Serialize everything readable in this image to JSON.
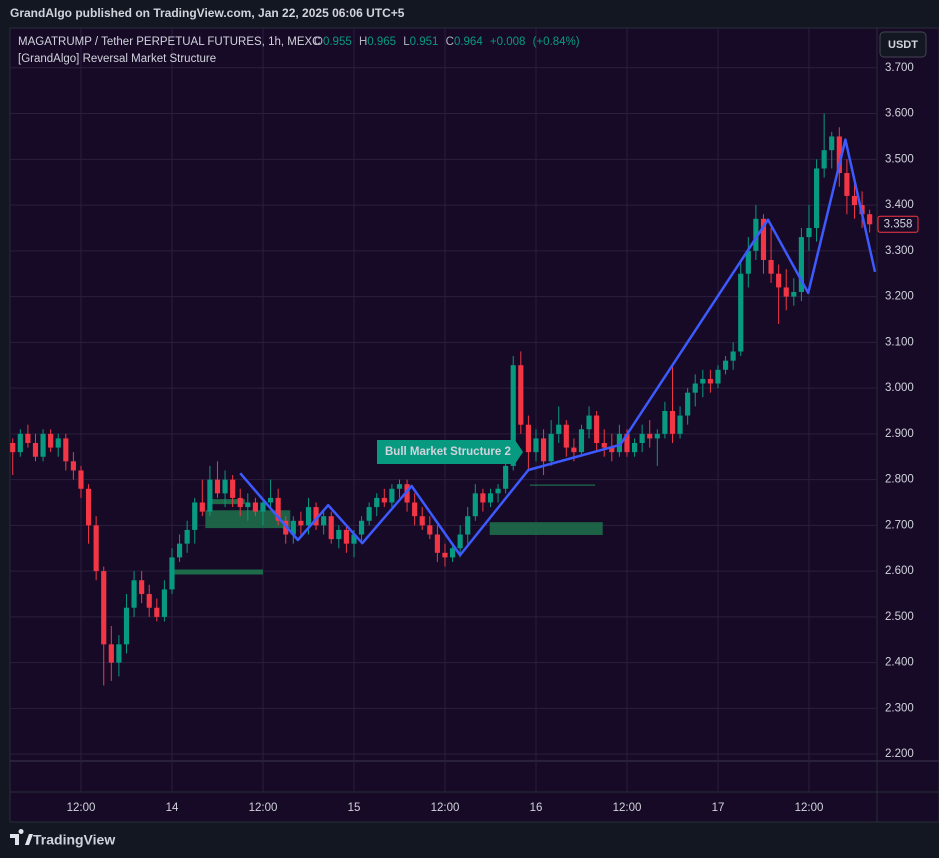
{
  "header": {
    "published": "GrandAlgo published on TradingView.com, Jan 22, 2025 06:06 UTC+5",
    "brand": "TradingView"
  },
  "legend": {
    "symbol": "MAGATRUMP / Tether PERPETUAL FUTURES, 1h, MEXC",
    "o_label": "O",
    "o": "0.955",
    "h_label": "H",
    "h": "0.965",
    "l_label": "L",
    "l": "0.951",
    "c_label": "C",
    "c": "0.964",
    "change": "+0.008",
    "change_pct": "(+0.84%)",
    "indicator": "[GrandAlgo] Reversal Market Structure",
    "currency": "USDT"
  },
  "chart_data": {
    "type": "candlestick",
    "x": [
      3,
      4,
      5,
      6,
      7,
      8,
      9,
      10,
      11,
      12,
      13,
      14,
      15,
      16,
      17,
      18,
      19,
      20,
      21,
      22,
      23,
      24,
      25,
      26,
      27,
      28,
      29,
      30,
      31,
      32,
      33,
      34,
      35,
      36,
      37,
      38,
      39,
      40,
      41,
      42,
      43,
      44,
      45,
      46,
      47,
      48,
      49,
      50,
      51,
      52,
      53,
      54,
      55,
      56,
      57,
      58,
      59,
      60,
      61,
      62,
      63,
      64,
      65,
      66,
      67,
      68,
      69,
      70,
      71,
      72,
      73,
      74,
      75,
      76,
      77,
      78,
      79,
      80,
      81,
      82,
      83,
      84,
      85,
      86,
      87,
      88,
      89,
      90,
      91,
      92,
      93,
      94,
      95,
      96,
      97,
      98,
      99,
      100,
      101,
      102,
      103,
      104,
      105,
      106,
      107,
      108,
      109,
      110,
      111,
      112,
      113,
      114,
      115,
      116
    ],
    "open": [
      2.88,
      2.86,
      2.9,
      2.88,
      2.85,
      2.9,
      2.87,
      2.89,
      2.84,
      2.82,
      2.78,
      2.7,
      2.6,
      2.44,
      2.4,
      2.44,
      2.52,
      2.58,
      2.55,
      2.52,
      2.5,
      2.56,
      2.63,
      2.66,
      2.69,
      2.75,
      2.73,
      2.8,
      2.77,
      2.8,
      2.76,
      2.74,
      2.75,
      2.73,
      2.75,
      2.76,
      2.71,
      2.68,
      2.71,
      2.7,
      2.74,
      2.7,
      2.72,
      2.67,
      2.69,
      2.66,
      2.68,
      2.71,
      2.74,
      2.76,
      2.75,
      2.78,
      2.79,
      2.75,
      2.72,
      2.7,
      2.68,
      2.64,
      2.63,
      2.65,
      2.68,
      2.72,
      2.77,
      2.75,
      2.77,
      2.78,
      2.83,
      3.05,
      2.92,
      2.86,
      2.89,
      2.84,
      2.9,
      2.92,
      2.87,
      2.86,
      2.91,
      2.94,
      2.88,
      2.87,
      2.86,
      2.9,
      2.86,
      2.88,
      2.9,
      2.89,
      2.9,
      2.95,
      2.9,
      2.94,
      2.99,
      3.01,
      3.02,
      3.01,
      3.04,
      3.06,
      3.08,
      3.25,
      3.3,
      3.37,
      3.28,
      3.25,
      3.22,
      3.2,
      3.21,
      3.33,
      3.35,
      3.48,
      3.52,
      3.55,
      3.47,
      3.42,
      3.4,
      3.38
    ],
    "high": [
      2.89,
      2.91,
      2.92,
      2.9,
      2.91,
      2.91,
      2.9,
      2.9,
      2.86,
      2.83,
      2.79,
      2.72,
      2.61,
      2.48,
      2.46,
      2.55,
      2.6,
      2.6,
      2.57,
      2.54,
      2.58,
      2.65,
      2.68,
      2.71,
      2.76,
      2.8,
      2.83,
      2.84,
      2.82,
      2.81,
      2.78,
      2.77,
      2.76,
      2.76,
      2.8,
      2.78,
      2.72,
      2.72,
      2.73,
      2.76,
      2.75,
      2.73,
      2.73,
      2.7,
      2.7,
      2.69,
      2.72,
      2.75,
      2.77,
      2.78,
      2.79,
      2.8,
      2.8,
      2.77,
      2.74,
      2.72,
      2.7,
      2.66,
      2.66,
      2.7,
      2.74,
      2.79,
      2.78,
      2.78,
      2.79,
      2.84,
      3.07,
      3.08,
      2.94,
      2.91,
      2.91,
      2.93,
      2.96,
      2.93,
      2.89,
      2.92,
      2.96,
      2.95,
      2.91,
      2.9,
      2.92,
      2.91,
      2.89,
      2.92,
      2.93,
      2.91,
      2.97,
      3.05,
      2.96,
      3.0,
      3.03,
      3.04,
      3.04,
      3.05,
      3.07,
      3.1,
      3.28,
      3.33,
      3.4,
      3.38,
      3.35,
      3.27,
      3.26,
      3.24,
      3.35,
      3.4,
      3.5,
      3.6,
      3.56,
      3.57,
      3.5,
      3.45,
      3.43,
      3.39
    ],
    "low": [
      2.81,
      2.85,
      2.87,
      2.84,
      2.84,
      2.86,
      2.85,
      2.82,
      2.8,
      2.76,
      2.66,
      2.58,
      2.35,
      2.36,
      2.37,
      2.42,
      2.5,
      2.53,
      2.5,
      2.49,
      2.49,
      2.55,
      2.62,
      2.64,
      2.66,
      2.72,
      2.72,
      2.76,
      2.74,
      2.74,
      2.72,
      2.71,
      2.72,
      2.7,
      2.74,
      2.7,
      2.66,
      2.66,
      2.68,
      2.68,
      2.69,
      2.68,
      2.66,
      2.65,
      2.64,
      2.63,
      2.66,
      2.7,
      2.72,
      2.74,
      2.74,
      2.76,
      2.73,
      2.7,
      2.69,
      2.67,
      2.62,
      2.61,
      2.62,
      2.63,
      2.66,
      2.71,
      2.73,
      2.74,
      2.75,
      2.77,
      2.82,
      2.9,
      2.82,
      2.84,
      2.81,
      2.83,
      2.88,
      2.85,
      2.84,
      2.85,
      2.89,
      2.86,
      2.85,
      2.84,
      2.85,
      2.85,
      2.85,
      2.86,
      2.87,
      2.83,
      2.89,
      2.88,
      2.89,
      2.92,
      2.96,
      2.98,
      2.99,
      3.0,
      3.03,
      3.04,
      3.07,
      3.22,
      3.28,
      3.25,
      3.23,
      3.14,
      3.17,
      3.18,
      3.19,
      3.3,
      3.32,
      3.46,
      3.48,
      3.44,
      3.38,
      3.37,
      3.35,
      3.34
    ],
    "close": [
      2.86,
      2.9,
      2.88,
      2.85,
      2.9,
      2.87,
      2.89,
      2.84,
      2.82,
      2.78,
      2.7,
      2.6,
      2.44,
      2.4,
      2.44,
      2.52,
      2.58,
      2.55,
      2.52,
      2.5,
      2.56,
      2.63,
      2.66,
      2.69,
      2.75,
      2.73,
      2.8,
      2.77,
      2.8,
      2.76,
      2.74,
      2.75,
      2.73,
      2.75,
      2.76,
      2.71,
      2.68,
      2.71,
      2.7,
      2.74,
      2.7,
      2.72,
      2.67,
      2.69,
      2.66,
      2.68,
      2.71,
      2.74,
      2.76,
      2.75,
      2.78,
      2.79,
      2.75,
      2.72,
      2.7,
      2.68,
      2.64,
      2.63,
      2.65,
      2.68,
      2.72,
      2.77,
      2.75,
      2.77,
      2.78,
      2.83,
      3.05,
      2.92,
      2.86,
      2.89,
      2.84,
      2.9,
      2.92,
      2.87,
      2.86,
      2.91,
      2.94,
      2.88,
      2.87,
      2.86,
      2.9,
      2.86,
      2.88,
      2.9,
      2.89,
      2.9,
      2.95,
      2.9,
      2.94,
      2.99,
      3.01,
      3.02,
      3.01,
      3.04,
      3.06,
      3.08,
      3.25,
      3.3,
      3.37,
      3.28,
      3.25,
      3.22,
      3.2,
      3.21,
      3.33,
      3.35,
      3.48,
      3.52,
      3.55,
      3.47,
      3.42,
      3.4,
      3.38,
      3.358
    ],
    "up_color": "#089981",
    "down_color": "#f23645",
    "structure": {
      "color": "#3d5afe",
      "x": [
        33,
        40.6,
        44.6,
        49.1,
        55.6,
        62,
        71,
        83.1,
        102.6,
        107.9,
        112.8,
        116.7
      ],
      "y": [
        2.814,
        2.668,
        2.744,
        2.661,
        2.786,
        2.635,
        2.821,
        2.876,
        3.368,
        3.208,
        3.543,
        3.254
      ]
    },
    "zones": [
      {
        "x0": 28.4,
        "x1": 39.6,
        "y0": 2.694,
        "y1": 2.733
      },
      {
        "x0": 65.9,
        "x1": 80.8,
        "y0": 2.679,
        "y1": 2.707
      }
    ],
    "levels": [
      {
        "x0": 24,
        "x1": 36,
        "y": 2.598
      },
      {
        "x0": 29,
        "x1": 33.6,
        "y": 2.752
      },
      {
        "x0": 71.2,
        "x1": 79.8,
        "y": 2.788
      }
    ],
    "zone_color": "#1e6b4a",
    "annotation": "Bull Market Structure 2",
    "xlim": [
      2.64,
      116.97
    ],
    "xticks": [
      {
        "value": 12,
        "label": "12:00"
      },
      {
        "value": 24,
        "label": "14"
      },
      {
        "value": 36,
        "label": "12:00"
      },
      {
        "value": 48,
        "label": "15"
      },
      {
        "value": 60,
        "label": "12:00"
      },
      {
        "value": 72,
        "label": "16"
      },
      {
        "value": 84,
        "label": "12:00"
      },
      {
        "value": 96,
        "label": "17"
      },
      {
        "value": 108,
        "label": "12:00"
      }
    ],
    "ylim": [
      2.185,
      3.787
    ],
    "yticks": [
      {
        "value": 3.7,
        "label": "3.700"
      },
      {
        "value": 3.6,
        "label": "3.600"
      },
      {
        "value": 3.5,
        "label": "3.500"
      },
      {
        "value": 3.4,
        "label": "3.400"
      },
      {
        "value": 3.3,
        "label": "3.300"
      },
      {
        "value": 3.2,
        "label": "3.200"
      },
      {
        "value": 3.1,
        "label": "3.100"
      },
      {
        "value": 3.0,
        "label": "3.000"
      },
      {
        "value": 2.9,
        "label": "2.900"
      },
      {
        "value": 2.8,
        "label": "2.800"
      },
      {
        "value": 2.7,
        "label": "2.700"
      },
      {
        "value": 2.6,
        "label": "2.600"
      },
      {
        "value": 2.5,
        "label": "2.500"
      },
      {
        "value": 2.4,
        "label": "2.400"
      },
      {
        "value": 2.3,
        "label": "2.300"
      },
      {
        "value": 2.2,
        "label": "2.200"
      }
    ],
    "grid": true
  }
}
